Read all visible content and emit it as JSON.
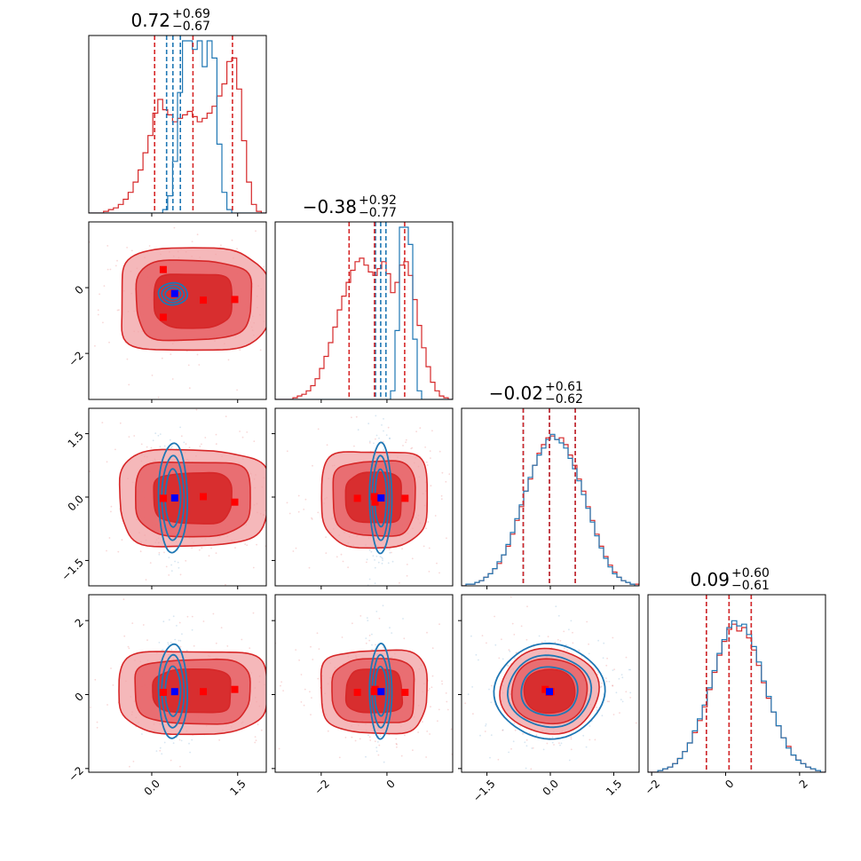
{
  "colors": {
    "red": "#d62728",
    "blue": "#1f77b4",
    "red_fill_light": "#f2a0a3",
    "red_fill_mid": "#e8666a",
    "red_fill_dark": "#d62728",
    "marker_red": "#ff0000",
    "marker_blue": "#0000ff"
  },
  "chart_data": {
    "type": "corner",
    "title": "",
    "xlabel": "",
    "ylabel": "",
    "n_params": 4,
    "axes": [
      {
        "range": [
          -1.1,
          2.0
        ],
        "ticks": [
          0.0,
          1.5
        ],
        "tick_labels": [
          "0.0",
          "1.5"
        ]
      },
      {
        "range": [
          -3.4,
          2.0
        ],
        "ticks": [
          -2,
          0
        ],
        "tick_labels": [
          "−2",
          "0"
        ]
      },
      {
        "range": [
          -2.1,
          2.1
        ],
        "ticks": [
          -1.5,
          0.0,
          1.5
        ],
        "tick_labels": [
          "−1.5",
          "0.0",
          "1.5"
        ]
      },
      {
        "range": [
          -2.1,
          2.7
        ],
        "ticks": [
          -2,
          0,
          2
        ],
        "tick_labels": [
          "−2",
          "0",
          "2"
        ]
      }
    ],
    "titles": [
      {
        "median": "0.72",
        "plus": "+0.69",
        "minus": "−0.67"
      },
      {
        "median": "−0.38",
        "plus": "+0.92",
        "minus": "−0.77"
      },
      {
        "median": "−0.02",
        "plus": "+0.61",
        "minus": "−0.62"
      },
      {
        "median": "0.09",
        "plus": "+0.60",
        "minus": "−0.61"
      }
    ],
    "series": [
      {
        "color": "red",
        "quantiles": [
          [
            0.05,
            0.72,
            1.41
          ],
          [
            -1.15,
            -0.38,
            0.54
          ],
          [
            -0.64,
            -0.02,
            0.59
          ],
          [
            -0.52,
            0.09,
            0.69
          ]
        ]
      },
      {
        "color": "blue",
        "quantiles": [
          [
            0.26,
            0.37,
            0.5
          ],
          [
            -0.35,
            -0.19,
            -0.03
          ],
          [
            -0.64,
            -0.02,
            0.59
          ],
          [
            -0.52,
            0.09,
            0.69
          ]
        ]
      }
    ],
    "markers": {
      "red": [
        [
          0.2,
          0.55,
          -0.03,
          0.06
        ],
        [
          0.2,
          -0.9,
          -0.03,
          0.06
        ],
        [
          0.9,
          -0.38,
          0.01,
          0.08
        ],
        [
          1.45,
          -0.36,
          -0.12,
          0.14
        ]
      ],
      "blue": [
        [
          0.4,
          -0.18,
          -0.02,
          0.08
        ]
      ]
    },
    "histograms": {
      "red": [
        [
          0,
          0,
          0,
          0.01,
          0.02,
          0.03,
          0.05,
          0.08,
          0.12,
          0.18,
          0.25,
          0.35,
          0.45,
          0.58,
          0.66,
          0.6,
          0.57,
          0.53,
          0.55,
          0.57,
          0.59,
          0.56,
          0.53,
          0.55,
          0.58,
          0.62,
          0.68,
          0.75,
          0.88,
          0.9,
          0.72,
          0.42,
          0.18,
          0.05,
          0.01,
          0
        ],
        [
          0,
          0,
          0,
          0,
          0.01,
          0.02,
          0.03,
          0.05,
          0.08,
          0.12,
          0.18,
          0.25,
          0.33,
          0.42,
          0.52,
          0.6,
          0.68,
          0.75,
          0.8,
          0.82,
          0.78,
          0.74,
          0.72,
          0.76,
          0.8,
          0.73,
          0.62,
          0.68,
          0.78,
          0.8,
          0.72,
          0.58,
          0.43,
          0.3,
          0.19,
          0.1,
          0.05,
          0.02,
          0.01,
          0
        ],
        [
          0,
          0.01,
          0.01,
          0.02,
          0.03,
          0.05,
          0.07,
          0.1,
          0.13,
          0.18,
          0.23,
          0.3,
          0.38,
          0.46,
          0.55,
          0.62,
          0.7,
          0.77,
          0.82,
          0.86,
          0.87,
          0.85,
          0.86,
          0.82,
          0.76,
          0.7,
          0.62,
          0.55,
          0.46,
          0.38,
          0.3,
          0.23,
          0.17,
          0.12,
          0.08,
          0.05,
          0.03,
          0.02,
          0.01,
          0.01
        ],
        [
          0,
          0,
          0.01,
          0.02,
          0.03,
          0.05,
          0.08,
          0.12,
          0.17,
          0.23,
          0.3,
          0.38,
          0.48,
          0.58,
          0.68,
          0.76,
          0.83,
          0.86,
          0.82,
          0.84,
          0.78,
          0.71,
          0.62,
          0.52,
          0.43,
          0.35,
          0.27,
          0.2,
          0.15,
          0.1,
          0.07,
          0.05,
          0.03,
          0.02,
          0.01,
          0
        ]
      ],
      "blue": [
        [
          0,
          0,
          0,
          0,
          0,
          0,
          0,
          0,
          0,
          0,
          0,
          0,
          0,
          0,
          0,
          0.02,
          0.1,
          0.3,
          0.7,
          1.0,
          1.0,
          0.95,
          1.0,
          0.85,
          1.0,
          0.9,
          0.4,
          0.12,
          0.02,
          0,
          0,
          0,
          0,
          0,
          0,
          0
        ],
        [
          0,
          0,
          0,
          0,
          0,
          0,
          0,
          0,
          0,
          0,
          0,
          0,
          0,
          0,
          0,
          0,
          0,
          0,
          0,
          0,
          0,
          0,
          0,
          0,
          0,
          0,
          0.05,
          0.4,
          1.0,
          1.0,
          0.9,
          0.35,
          0.05,
          0,
          0,
          0,
          0,
          0,
          0,
          0
        ],
        [
          0,
          0.01,
          0.01,
          0.02,
          0.03,
          0.05,
          0.07,
          0.1,
          0.14,
          0.18,
          0.24,
          0.31,
          0.39,
          0.47,
          0.55,
          0.63,
          0.7,
          0.76,
          0.8,
          0.85,
          0.88,
          0.85,
          0.83,
          0.8,
          0.74,
          0.68,
          0.61,
          0.53,
          0.45,
          0.37,
          0.29,
          0.22,
          0.16,
          0.11,
          0.07,
          0.05,
          0.03,
          0.02,
          0.01,
          0
        ],
        [
          0,
          0,
          0.01,
          0.02,
          0.03,
          0.05,
          0.08,
          0.12,
          0.17,
          0.24,
          0.31,
          0.39,
          0.49,
          0.59,
          0.69,
          0.77,
          0.84,
          0.88,
          0.85,
          0.86,
          0.8,
          0.73,
          0.64,
          0.53,
          0.44,
          0.35,
          0.27,
          0.2,
          0.14,
          0.1,
          0.07,
          0.05,
          0.03,
          0.02,
          0.01,
          0
        ]
      ]
    }
  }
}
